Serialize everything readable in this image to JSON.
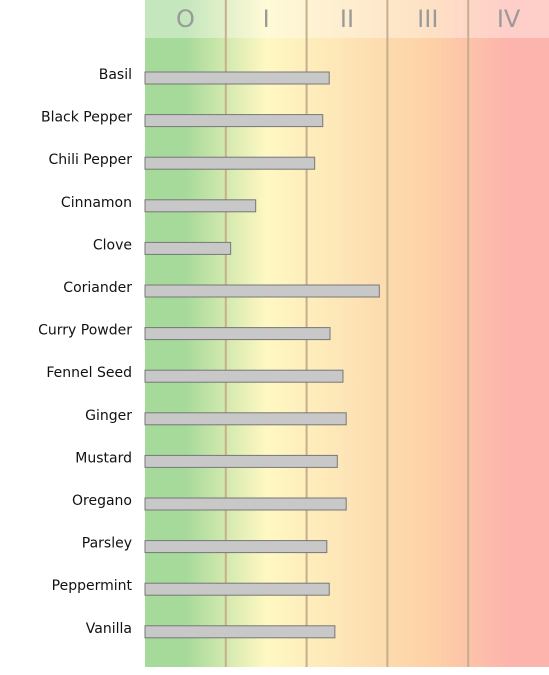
{
  "chart_data": {
    "type": "bar",
    "orientation": "horizontal",
    "categories": [
      "Basil",
      "Black Pepper",
      "Chili Pepper",
      "Cinnamon",
      "Clove",
      "Coriander",
      "Curry Powder",
      "Fennel Seed",
      "Ginger",
      "Mustard",
      "Oregano",
      "Parsley",
      "Peppermint",
      "Vanilla"
    ],
    "values": [
      2.28,
      2.2,
      2.1,
      1.37,
      1.06,
      2.9,
      2.29,
      2.45,
      2.49,
      2.38,
      2.49,
      2.25,
      2.28,
      2.35
    ],
    "color": "#c8c8c8",
    "xlim": [
      0,
      5
    ],
    "zones": [
      {
        "label": "O",
        "range": [
          0,
          1
        ],
        "color": "#a6da9a"
      },
      {
        "label": "I",
        "range": [
          1,
          2
        ],
        "color": "#fff8c2"
      },
      {
        "label": "II",
        "range": [
          2,
          3
        ],
        "color": "#fde4b6"
      },
      {
        "label": "III",
        "range": [
          3,
          4
        ],
        "color": "#fdd2a6"
      },
      {
        "label": "IV",
        "range": [
          4,
          5
        ],
        "color": "#fdb4ad"
      }
    ]
  }
}
